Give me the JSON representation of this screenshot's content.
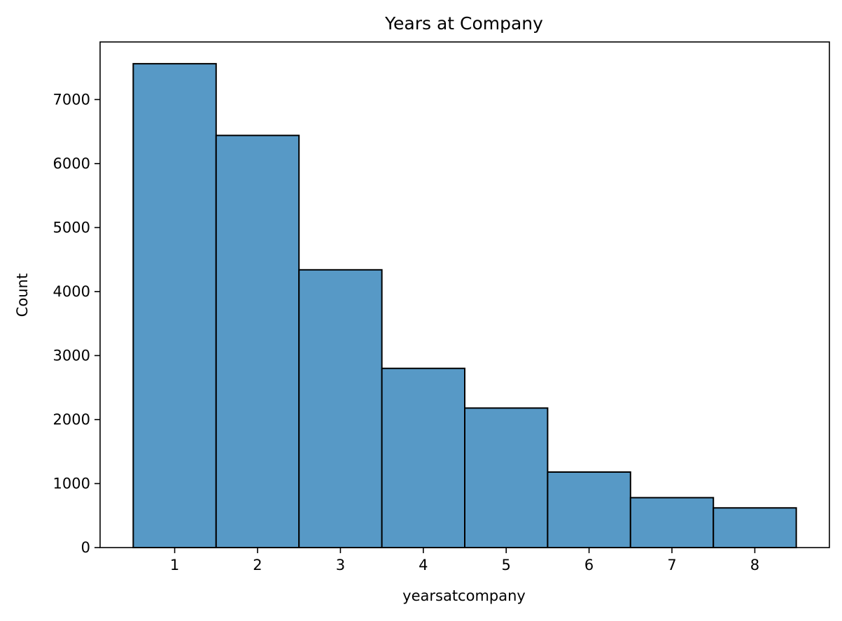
{
  "chart_data": {
    "type": "bar",
    "title": "Years at Company",
    "xlabel": "yearsatcompany",
    "ylabel": "Count",
    "categories": [
      "1",
      "2",
      "3",
      "4",
      "5",
      "6",
      "7",
      "8"
    ],
    "values": [
      7560,
      6440,
      4340,
      2800,
      2180,
      1180,
      780,
      620
    ],
    "ylim": [
      0,
      7900
    ],
    "yticks": [
      0,
      1000,
      2000,
      3000,
      4000,
      5000,
      6000,
      7000
    ],
    "xticks": [
      "1",
      "2",
      "3",
      "4",
      "5",
      "6",
      "7",
      "8"
    ],
    "grid": false,
    "colors": {
      "bar_fill": "#5799c6",
      "bar_edge": "#000000"
    }
  }
}
